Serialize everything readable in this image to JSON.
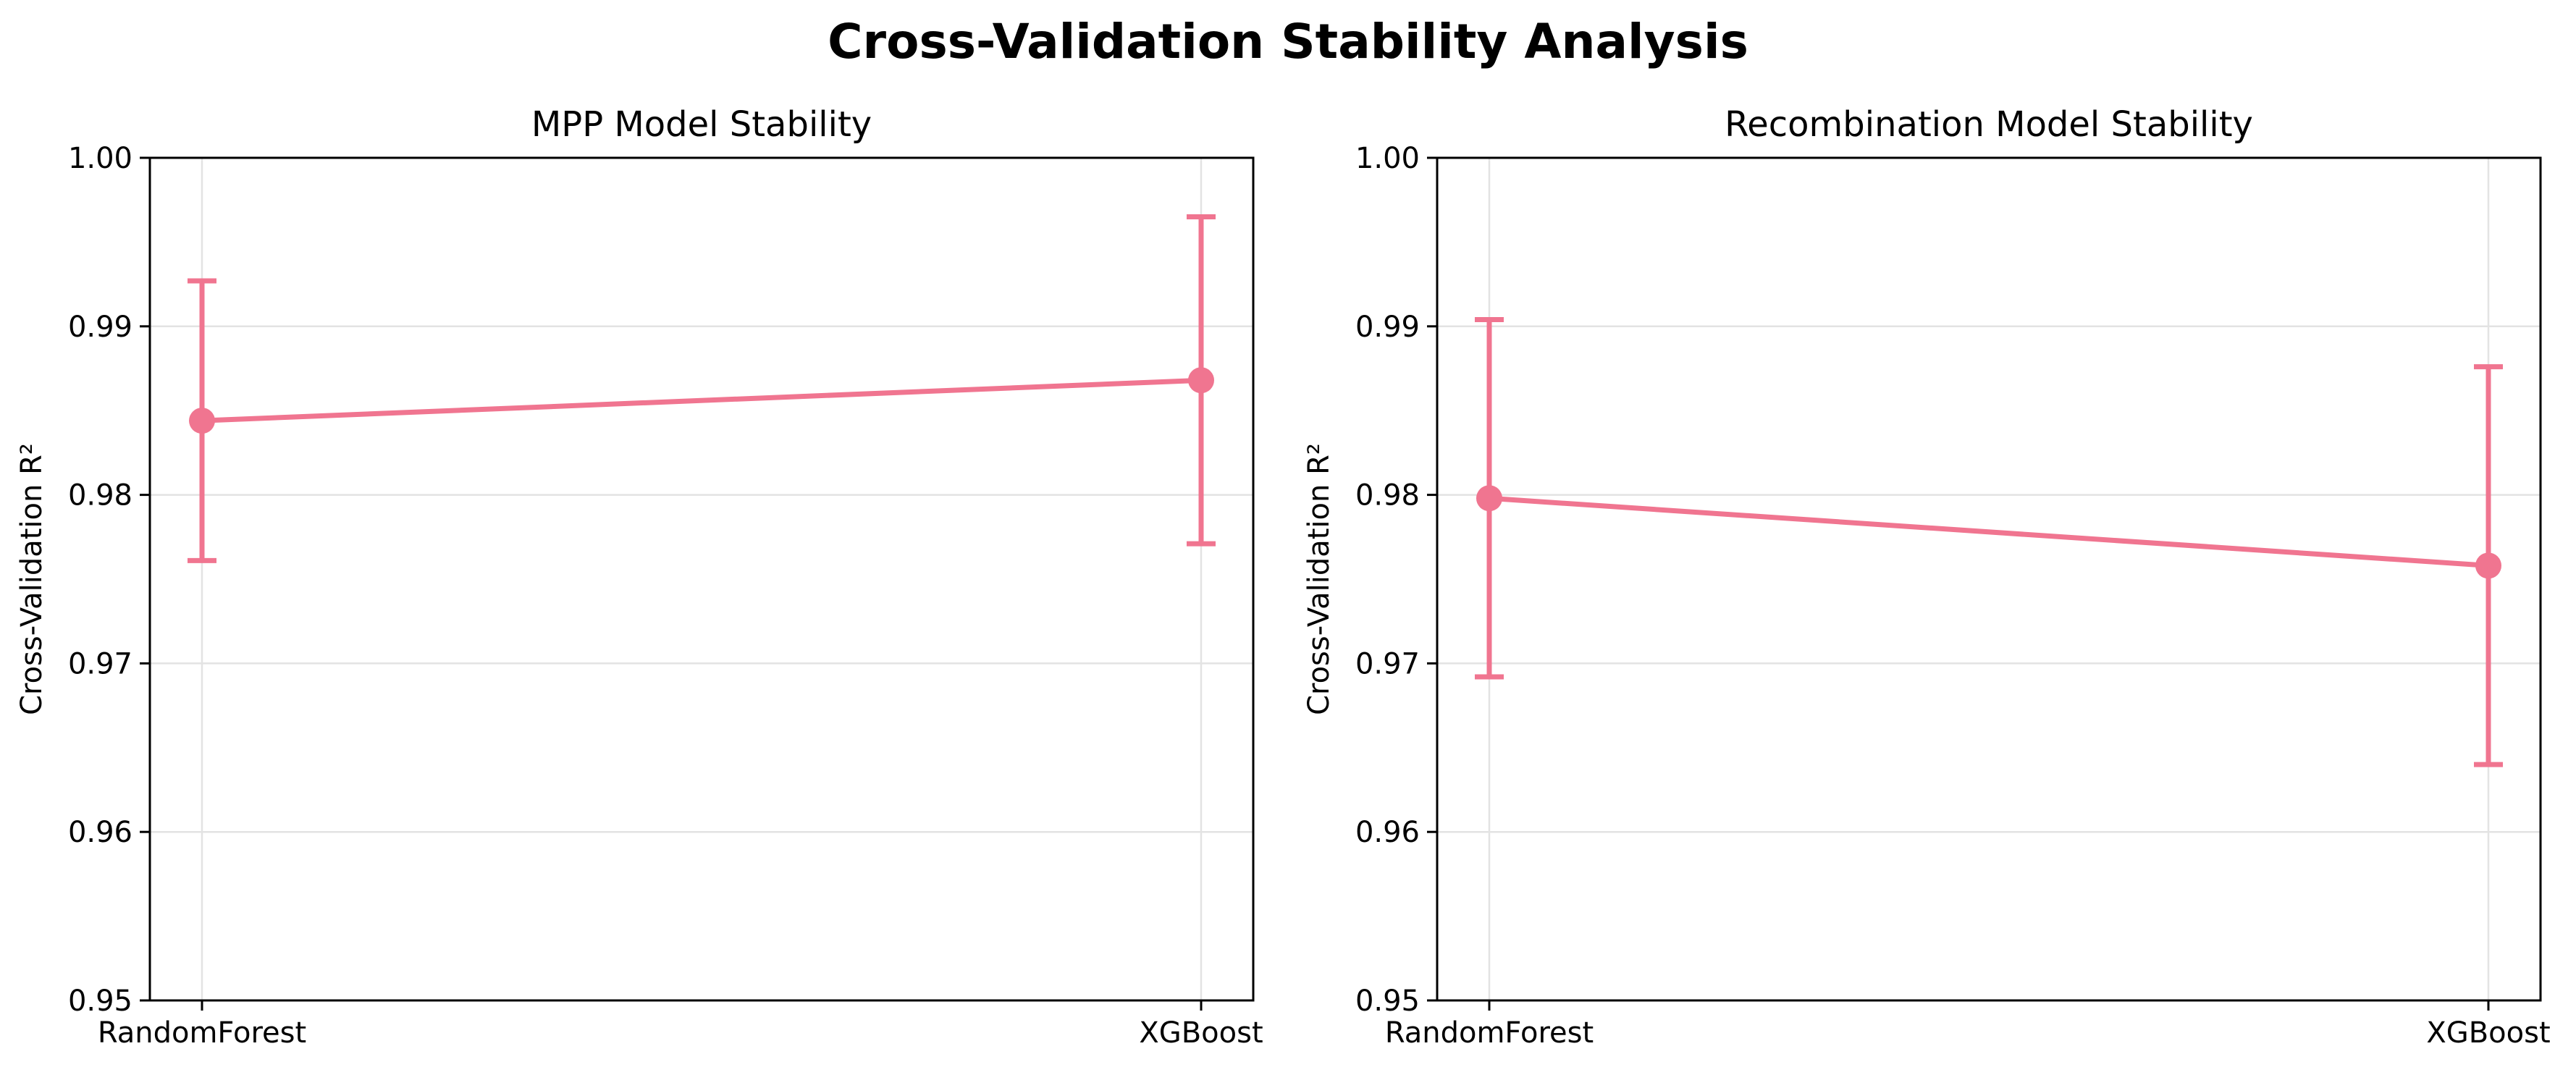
{
  "figure_title": "Cross-Validation Stability Analysis",
  "chart_data": [
    {
      "type": "line",
      "title": "MPP Model Stability",
      "xlabel": "",
      "ylabel": "Cross-Validation R²",
      "categories": [
        "RandomForest",
        "XGBoost"
      ],
      "values": [
        0.9844,
        0.9868
      ],
      "error": [
        0.0083,
        0.0097
      ],
      "ylim": [
        0.95,
        1.0
      ],
      "yticks": [
        0.95,
        0.96,
        0.97,
        0.98,
        0.99,
        1.0
      ],
      "ytick_labels": [
        "0.95",
        "0.96",
        "0.97",
        "0.98",
        "0.99",
        "1.00"
      ],
      "grid": true,
      "color": "#f07590"
    },
    {
      "type": "line",
      "title": "Recombination Model Stability",
      "xlabel": "",
      "ylabel": "Cross-Validation R²",
      "categories": [
        "RandomForest",
        "XGBoost"
      ],
      "values": [
        0.9798,
        0.9758
      ],
      "error": [
        0.0106,
        0.0118
      ],
      "ylim": [
        0.95,
        1.0
      ],
      "yticks": [
        0.95,
        0.96,
        0.97,
        0.98,
        0.99,
        1.0
      ],
      "ytick_labels": [
        "0.95",
        "0.96",
        "0.97",
        "0.98",
        "0.99",
        "1.00"
      ],
      "grid": true,
      "color": "#f07590"
    }
  ]
}
